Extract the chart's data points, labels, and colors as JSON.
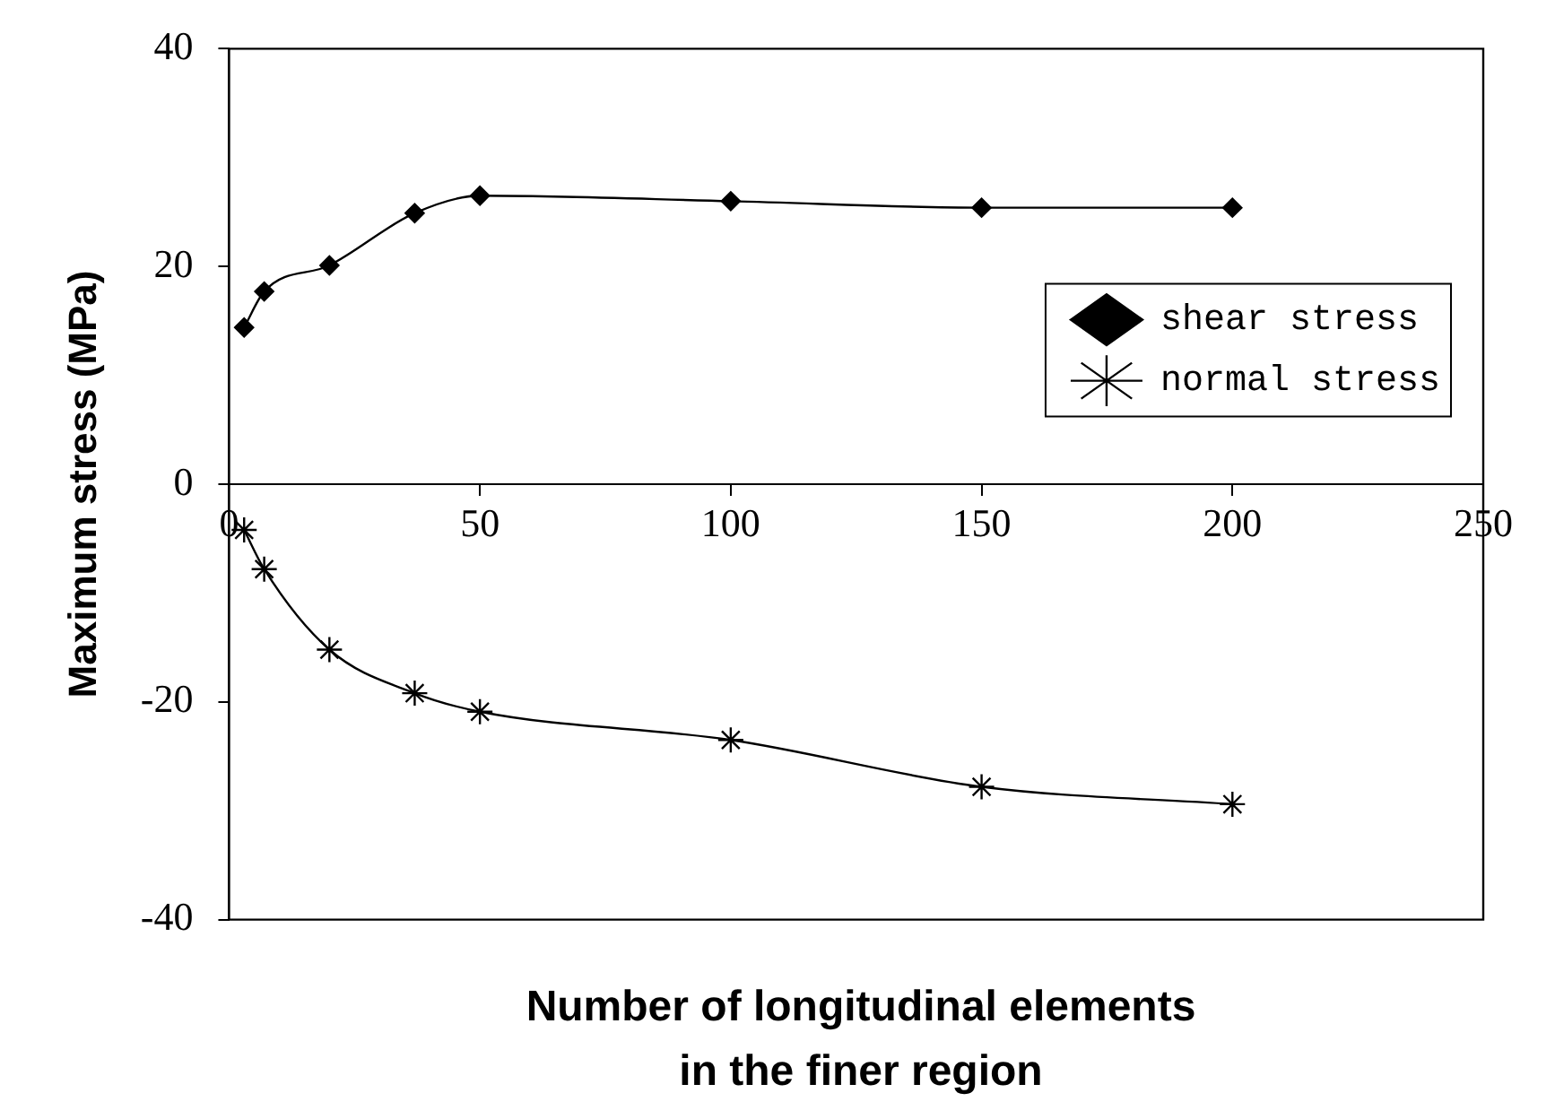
{
  "chart_data": {
    "type": "line",
    "xlabel": "Number of longitudinal elements\nin the finer region",
    "ylabel": "Maximum stress (MPa)",
    "x": [
      3,
      7,
      20,
      37,
      50,
      100,
      150,
      200
    ],
    "series": [
      {
        "name": "shear stress",
        "color": "#000000",
        "marker": "diamond",
        "values": [
          14.4,
          17.7,
          20.1,
          24.9,
          26.5,
          26.0,
          25.4,
          25.4
        ]
      },
      {
        "name": "normal stress",
        "color": "#000000",
        "marker": "cross",
        "values": [
          -4.2,
          -7.8,
          -15.2,
          -19.2,
          -20.9,
          -23.5,
          -27.8,
          -29.4
        ]
      }
    ],
    "xlim": [
      0,
      250
    ],
    "xticks": [
      0,
      50,
      100,
      150,
      200,
      250
    ],
    "ylim": [
      -40,
      40
    ],
    "yticks": [
      -40,
      -20,
      0,
      20,
      40
    ],
    "grid": false,
    "legend": "right",
    "line_style": "solid"
  }
}
